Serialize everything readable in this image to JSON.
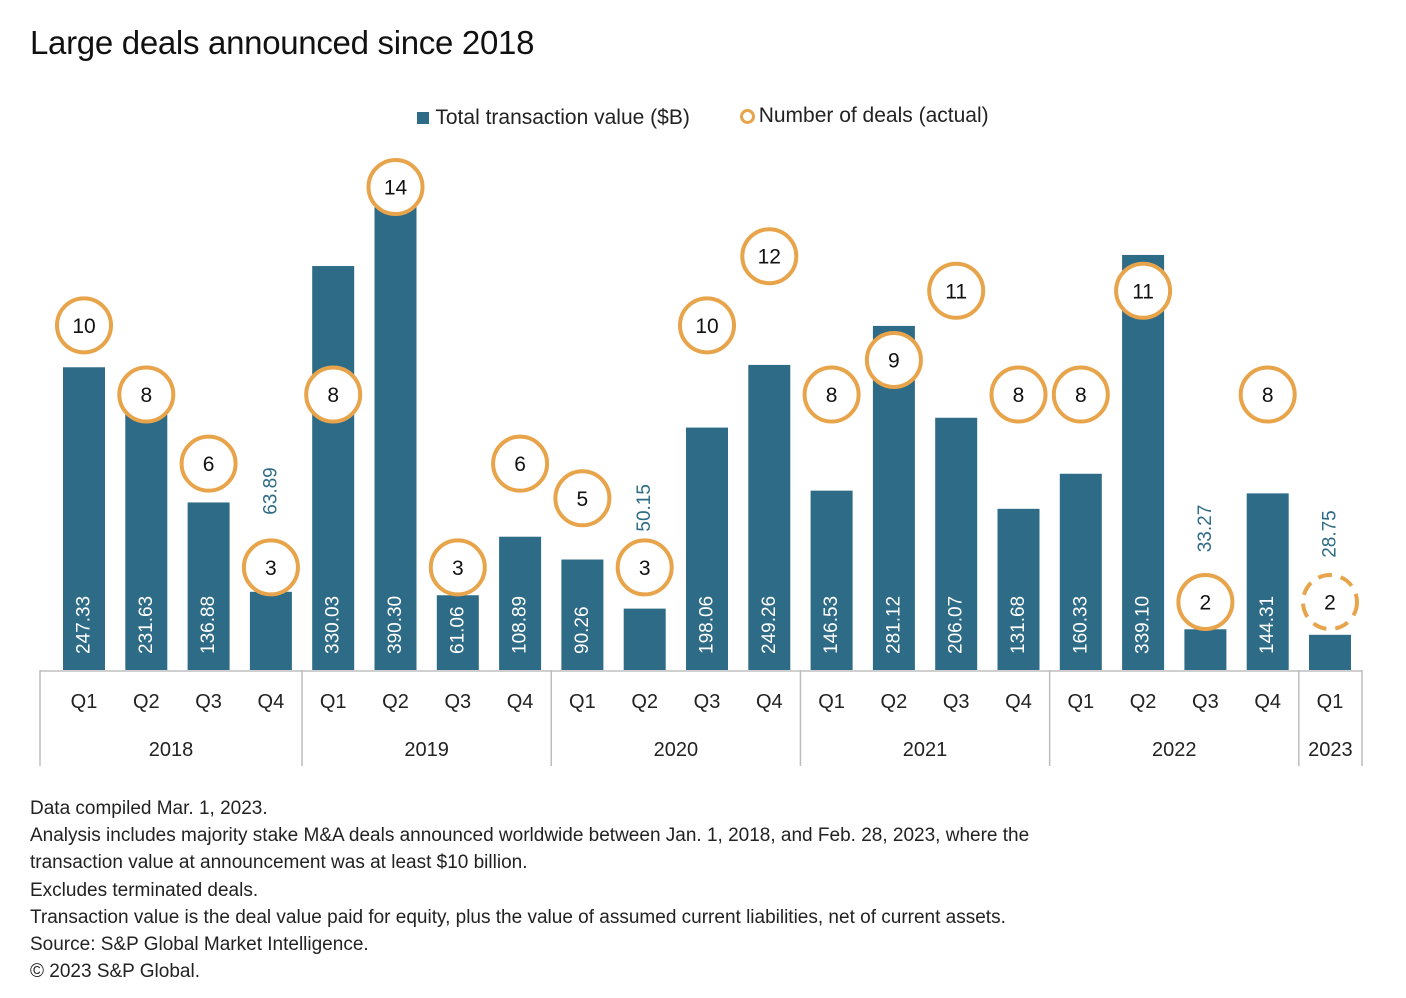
{
  "title": "Large deals announced since 2018",
  "legend": {
    "bars_label": "Total transaction value ($B)",
    "circles_label": "Number of deals (actual)"
  },
  "colors": {
    "bar": "#2e6b87",
    "circle": "#e8a44a",
    "outside_label": "#2e6b87"
  },
  "chart_data": {
    "type": "bar",
    "title": "Large deals announced since 2018",
    "xlabel": "",
    "ylabel": "",
    "ylim": [
      0,
      400
    ],
    "grid": false,
    "legend_position": "top-center",
    "categories": [
      "Q1 2018",
      "Q2 2018",
      "Q3 2018",
      "Q4 2018",
      "Q1 2019",
      "Q2 2019",
      "Q3 2019",
      "Q4 2019",
      "Q1 2020",
      "Q2 2020",
      "Q3 2020",
      "Q4 2020",
      "Q1 2021",
      "Q2 2021",
      "Q3 2021",
      "Q4 2021",
      "Q1 2022",
      "Q2 2022",
      "Q3 2022",
      "Q4 2022",
      "Q1 2023"
    ],
    "quarter_labels": [
      "Q1",
      "Q2",
      "Q3",
      "Q4",
      "Q1",
      "Q2",
      "Q3",
      "Q4",
      "Q1",
      "Q2",
      "Q3",
      "Q4",
      "Q1",
      "Q2",
      "Q3",
      "Q4",
      "Q1",
      "Q2",
      "Q3",
      "Q4",
      "Q1"
    ],
    "years": [
      {
        "label": "2018",
        "quarters": 4
      },
      {
        "label": "2019",
        "quarters": 4
      },
      {
        "label": "2020",
        "quarters": 4
      },
      {
        "label": "2021",
        "quarters": 4
      },
      {
        "label": "2022",
        "quarters": 4
      },
      {
        "label": "2023",
        "quarters": 1
      }
    ],
    "series": [
      {
        "name": "Total transaction value ($B)",
        "type": "bar",
        "values": [
          247.33,
          231.63,
          136.88,
          63.89,
          330.03,
          390.3,
          61.06,
          108.89,
          90.26,
          50.15,
          198.06,
          249.26,
          146.53,
          281.12,
          206.07,
          131.68,
          160.33,
          339.1,
          33.27,
          144.31,
          28.75
        ],
        "labels": [
          "247.33",
          "231.63",
          "136.88",
          "63.89",
          "330.03",
          "390.30",
          "61.06",
          "108.89",
          "90.26",
          "50.15",
          "198.06",
          "249.26",
          "146.53",
          "281.12",
          "206.07",
          "131.68",
          "160.33",
          "339.10",
          "33.27",
          "144.31",
          "28.75"
        ],
        "label_outside": [
          false,
          false,
          false,
          true,
          false,
          false,
          false,
          false,
          false,
          true,
          false,
          false,
          false,
          false,
          false,
          false,
          false,
          false,
          true,
          false,
          true
        ]
      },
      {
        "name": "Number of deals (actual)",
        "type": "circle-marker",
        "values": [
          10,
          8,
          6,
          3,
          8,
          14,
          3,
          6,
          5,
          3,
          10,
          12,
          8,
          9,
          11,
          8,
          8,
          11,
          2,
          8,
          2
        ],
        "dashed": [
          false,
          false,
          false,
          false,
          false,
          false,
          false,
          false,
          false,
          false,
          false,
          false,
          false,
          false,
          false,
          false,
          false,
          false,
          false,
          false,
          true
        ]
      }
    ]
  },
  "footer": [
    "Data compiled Mar. 1, 2023.",
    "Analysis includes majority stake M&A deals announced worldwide between Jan. 1, 2018, and Feb. 28, 2023, where the",
    "transaction value at announcement was at least $10 billion.",
    "Excludes terminated deals.",
    "Transaction value is the deal value paid for equity, plus the value of assumed current liabilities, net of current assets.",
    "Source: S&P Global Market Intelligence.",
    "© 2023 S&P Global."
  ]
}
